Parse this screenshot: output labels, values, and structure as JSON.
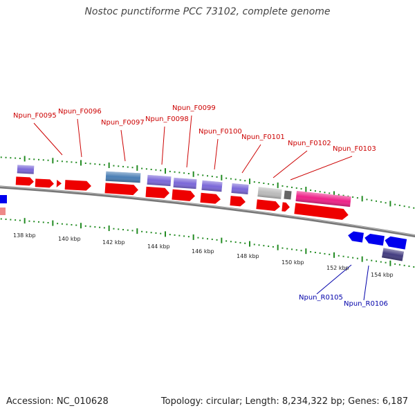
{
  "title": "Nostoc punctiforme PCC 73102, complete genome",
  "footer": {
    "accession": "Accession: NC_010628",
    "summary": "Topology: circular; Length: 8,234,322 bp; Genes: 6,187"
  },
  "colors": {
    "forward_label": "#cc0000",
    "reverse_label": "#0000aa",
    "cds_forward": "#ee0000",
    "cds_reverse": "#0000ee",
    "gene_purple": "#7b68d8",
    "gene_steelblue": "#4a7fb5",
    "gene_pink": "#ee2288",
    "gene_gray": "#bbbbbb",
    "gene_darkgray": "#666666",
    "gene_darkpurple": "#443d80",
    "gene_lightred": "#ee8888",
    "tick_green": "#228b22",
    "backbone": "#777777"
  },
  "ticks": [
    {
      "label": "138 kbp"
    },
    {
      "label": "140 kbp"
    },
    {
      "label": "142 kbp"
    },
    {
      "label": "144 kbp"
    },
    {
      "label": "146 kbp"
    },
    {
      "label": "148 kbp"
    },
    {
      "label": "150 kbp"
    },
    {
      "label": "152 kbp"
    },
    {
      "label": "154 kbp"
    }
  ],
  "forward_labels": [
    {
      "text": "Npun_F0095"
    },
    {
      "text": "Npun_F0096"
    },
    {
      "text": "Npun_F0097"
    },
    {
      "text": "Npun_F0098"
    },
    {
      "text": "Npun_F0099"
    },
    {
      "text": "Npun_F0100"
    },
    {
      "text": "Npun_F0101"
    },
    {
      "text": "Npun_F0102"
    },
    {
      "text": "Npun_F0103"
    }
  ],
  "reverse_labels": [
    {
      "text": "Npun_R0105"
    },
    {
      "text": "Npun_R0106"
    }
  ]
}
